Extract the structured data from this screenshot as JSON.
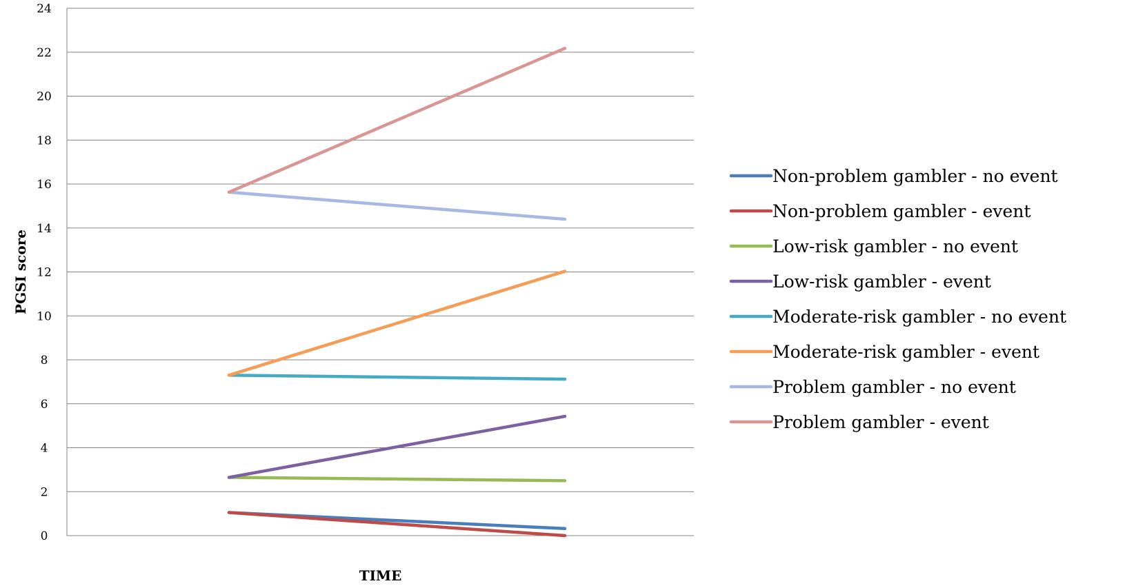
{
  "chart_data": {
    "type": "line",
    "title": "",
    "xlabel": "TIME",
    "ylabel": "PGSI score",
    "x": [
      1,
      2
    ],
    "ylim": [
      0,
      24
    ],
    "yticks": [
      0,
      2,
      4,
      6,
      8,
      10,
      12,
      14,
      16,
      18,
      20,
      22,
      24
    ],
    "grid": true,
    "legend_position": "right",
    "series": [
      {
        "name": "Non-problem gambler - no event",
        "color": "#4a7ebb",
        "values": [
          1.05,
          0.32
        ]
      },
      {
        "name": "Non-problem gambler - event",
        "color": "#be4b48",
        "values": [
          1.05,
          0.0
        ]
      },
      {
        "name": "Low-risk gambler - no event",
        "color": "#98b954",
        "values": [
          2.65,
          2.5
        ]
      },
      {
        "name": "Low-risk gambler - event",
        "color": "#7d60a0",
        "values": [
          2.65,
          5.43
        ]
      },
      {
        "name": "Moderate-risk gambler - no event",
        "color": "#46aac5",
        "values": [
          7.3,
          7.12
        ]
      },
      {
        "name": "Moderate-risk gambler - event",
        "color": "#f59d56",
        "values": [
          7.3,
          12.03
        ]
      },
      {
        "name": "Problem gambler - no event",
        "color": "#a7b9e3",
        "values": [
          15.63,
          14.4
        ]
      },
      {
        "name": "Problem gambler - event",
        "color": "#d99694",
        "values": [
          15.63,
          22.18
        ]
      }
    ]
  }
}
